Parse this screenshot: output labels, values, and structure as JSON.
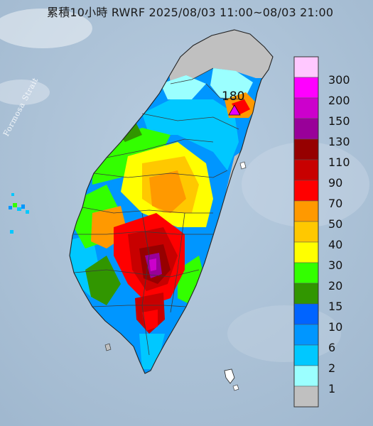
{
  "title": "累積10小時 RWRF 2025/08/03 11:00~08/03 21:00",
  "strait_label": "Formosa Strait",
  "max_marker": {
    "value": "180",
    "color": "#e600ff"
  },
  "legend": [
    {
      "label": "300",
      "color": "#ffc8ff"
    },
    {
      "label": "200",
      "color": "#ff00ff"
    },
    {
      "label": "150",
      "color": "#cc00cc"
    },
    {
      "label": "130",
      "color": "#990099"
    },
    {
      "label": "110",
      "color": "#960000"
    },
    {
      "label": "90",
      "color": "#c80000"
    },
    {
      "label": "70",
      "color": "#ff0000"
    },
    {
      "label": "50",
      "color": "#ff9900"
    },
    {
      "label": "40",
      "color": "#ffc800"
    },
    {
      "label": "30",
      "color": "#ffff00"
    },
    {
      "label": "20",
      "color": "#33ff00"
    },
    {
      "label": "15",
      "color": "#319600"
    },
    {
      "label": "10",
      "color": "#0064ff"
    },
    {
      "label": "6",
      "color": "#0096ff"
    },
    {
      "label": "2",
      "color": "#00c8ff"
    },
    {
      "label": "1",
      "color": "#9bffff"
    },
    {
      "label": "",
      "color": "#c0c0c0"
    }
  ]
}
